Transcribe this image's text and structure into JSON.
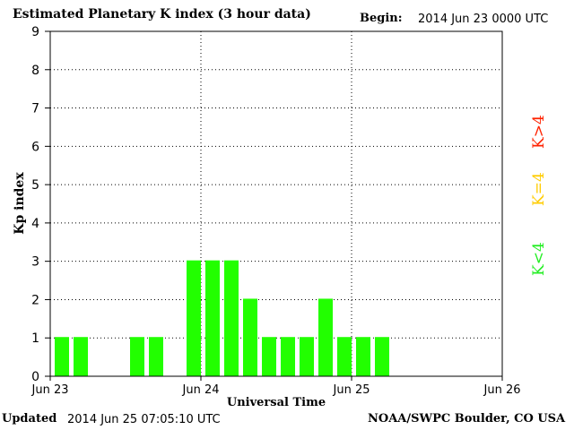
{
  "header": {
    "title": "Estimated Planetary K index (3 hour data)",
    "begin_label": "Begin:",
    "begin_value": "2014 Jun 23 0000 UTC"
  },
  "footer": {
    "updated_label": "Updated",
    "updated_value": "2014 Jun 25 07:05:10 UTC",
    "credit": "NOAA/SWPC Boulder, CO USA"
  },
  "legend": {
    "high": {
      "label": "K>4",
      "color": "#ff2200"
    },
    "equal": {
      "label": "K=4",
      "color": "#ffcc00"
    },
    "low": {
      "label": "K<4",
      "color": "#22ee22"
    }
  },
  "chart_data": {
    "type": "bar",
    "title": "Estimated Planetary K index (3 hour data)",
    "xlabel": "Universal Time",
    "ylabel": "Kp index",
    "ylim": [
      0,
      9
    ],
    "yticks": [
      0,
      1,
      2,
      3,
      4,
      5,
      6,
      7,
      8,
      9
    ],
    "x_tick_labels": [
      "Jun 23",
      "Jun 24",
      "Jun 25",
      "Jun 26"
    ],
    "intervals_per_day": 8,
    "grid": true,
    "bar_color": "#22ff00",
    "values": [
      1,
      1,
      null,
      null,
      1,
      1,
      null,
      3,
      3,
      3,
      2,
      1,
      1,
      1,
      2,
      1,
      1,
      1,
      null,
      null,
      null,
      null,
      null,
      null
    ]
  }
}
